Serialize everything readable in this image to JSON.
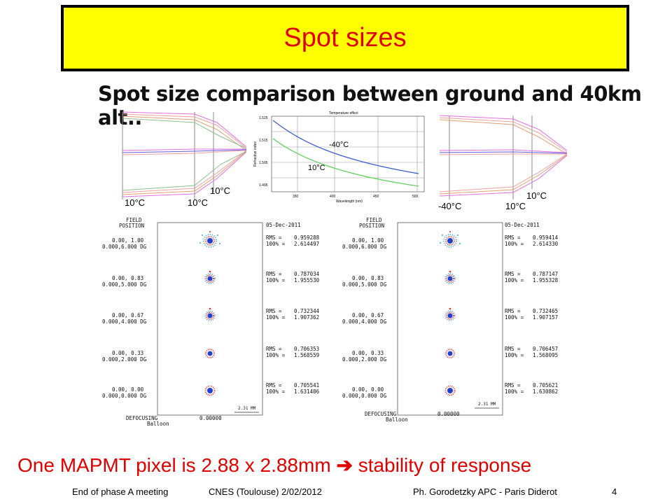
{
  "slide": {
    "title": "Spot sizes",
    "subtitle": "Spot size comparison between ground and 40km alt..",
    "bottom_text_a": "One MAPMT pixel is 2.88 x 2.88mm",
    "bottom_text_b": "stability of response"
  },
  "optics": {
    "left_labels": [
      "10°C",
      "10°C",
      "10°C"
    ],
    "right_labels": [
      "-40°C",
      "10°C",
      "10°C"
    ]
  },
  "temperature_chart": {
    "title": "Temperature effect",
    "xlabel": "Wavelength (nm)",
    "ylabel": "Refractive index",
    "x_ticks": [
      "350",
      "400",
      "450",
      "500"
    ],
    "y_ticks": [
      "1.525",
      "1.515",
      "1.505",
      "1.495"
    ],
    "annot_cold": "-40°C",
    "annot_warm": "10°C",
    "colors": {
      "cold": "#4060d0",
      "warm": "#60d060"
    }
  },
  "spot_diagrams": [
    {
      "header": "FIELD\nPOSITION",
      "date": "05-Dec-2011",
      "fields": [
        {
          "pos": "0.00, 1.00",
          "angle": "0.000,6.000 DG",
          "rms": "0.959288",
          "pct": "2.614497"
        },
        {
          "pos": "0.00, 0.83",
          "angle": "0.000,5.000 DG",
          "rms": "0.787034",
          "pct": "1.955530"
        },
        {
          "pos": "0.00, 0.67",
          "angle": "0.000,4.000 DG",
          "rms": "0.732344",
          "pct": "1.907362"
        },
        {
          "pos": "0.00, 0.33",
          "angle": "0.000,2.000 DG",
          "rms": "0.706353",
          "pct": "1.568559"
        },
        {
          "pos": "0.00, 0.00",
          "angle": "0.000,0.000 DG",
          "rms": "0.705541",
          "pct": "1.631406"
        }
      ],
      "scale": "2.31  MM",
      "defocus_label": "DEFOCUSING",
      "defocus_value": "0.00000",
      "name": "Balloon"
    },
    {
      "header": "FIELD\nPOSITION",
      "date": "05-Dec-2011",
      "fields": [
        {
          "pos": "0.00, 1.00",
          "angle": "0.000,6.000 DG",
          "rms": "0.959414",
          "pct": "2.614330"
        },
        {
          "pos": "0.00, 0.83",
          "angle": "0.000,5.000 DG",
          "rms": "0.787147",
          "pct": "1.955328"
        },
        {
          "pos": "0.00, 0.67",
          "angle": "0.000,4.000 DG",
          "rms": "0.732465",
          "pct": "1.907157"
        },
        {
          "pos": "0.00, 0.33",
          "angle": "0.000,2.000 DG",
          "rms": "0.706457",
          "pct": "1.568095"
        },
        {
          "pos": "0.00, 0.00",
          "angle": "0.000,0.000 DG",
          "rms": "0.705621",
          "pct": "1.630862"
        }
      ],
      "scale": "2.31  MM",
      "defocus_label": "DEFOCUSING",
      "defocus_value": "0.00000",
      "name": "Balloon"
    }
  ],
  "labels": {
    "rms": "RMS  =",
    "pct": "100% ="
  },
  "footer": {
    "meeting": "End of phase A meeting",
    "location": "CNES (Toulouse) 2/02/2012",
    "author": "Ph. Gorodetzky APC - Paris Diderot",
    "page": "4"
  }
}
